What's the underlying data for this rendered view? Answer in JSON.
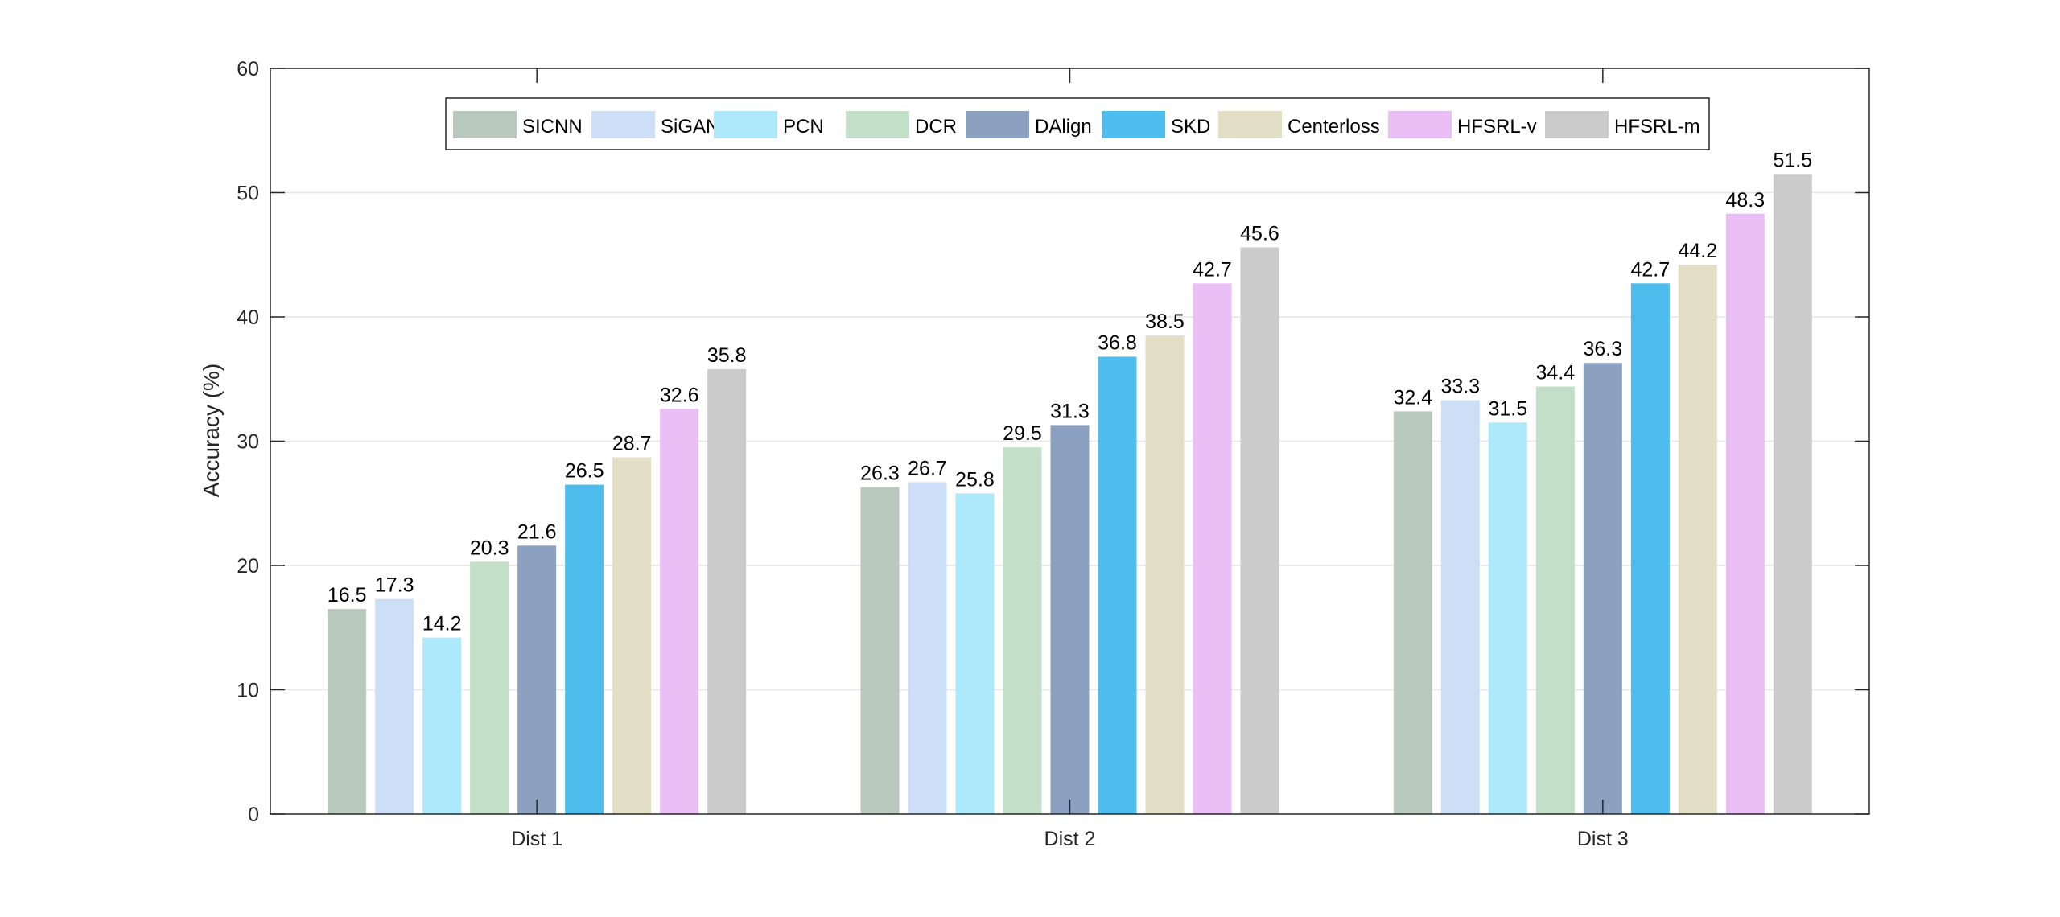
{
  "chart_data": {
    "type": "bar",
    "title": "",
    "xlabel": "",
    "ylabel": "Accuracy (%)",
    "ylim": [
      0,
      60
    ],
    "yticks": [
      0,
      10,
      20,
      30,
      40,
      50,
      60
    ],
    "grid": true,
    "legend_position": "top-center",
    "categories": [
      "Dist 1",
      "Dist 2",
      "Dist 3"
    ],
    "series": [
      {
        "name": "SICNN",
        "color": "#b9c8bc",
        "values": [
          16.5,
          26.3,
          32.4
        ]
      },
      {
        "name": "SiGAN",
        "color": "#cddff7",
        "values": [
          17.3,
          26.7,
          33.3
        ]
      },
      {
        "name": "PCN",
        "color": "#aee9fb",
        "values": [
          14.2,
          25.8,
          31.5
        ]
      },
      {
        "name": "DCR",
        "color": "#c3dfc8",
        "values": [
          20.3,
          29.5,
          34.4
        ]
      },
      {
        "name": "DAlign",
        "color": "#8ca0c0",
        "values": [
          21.6,
          31.3,
          36.3
        ]
      },
      {
        "name": "SKD",
        "color": "#4cbdec",
        "values": [
          26.5,
          36.8,
          42.7
        ]
      },
      {
        "name": "Centerloss",
        "color": "#e3dec6",
        "values": [
          28.7,
          38.5,
          44.2
        ]
      },
      {
        "name": "HFSRL-v",
        "color": "#e9bff5",
        "values": [
          32.6,
          42.7,
          48.3
        ]
      },
      {
        "name": "HFSRL-m",
        "color": "#cbcbcb",
        "values": [
          35.8,
          45.6,
          51.5
        ]
      }
    ]
  }
}
